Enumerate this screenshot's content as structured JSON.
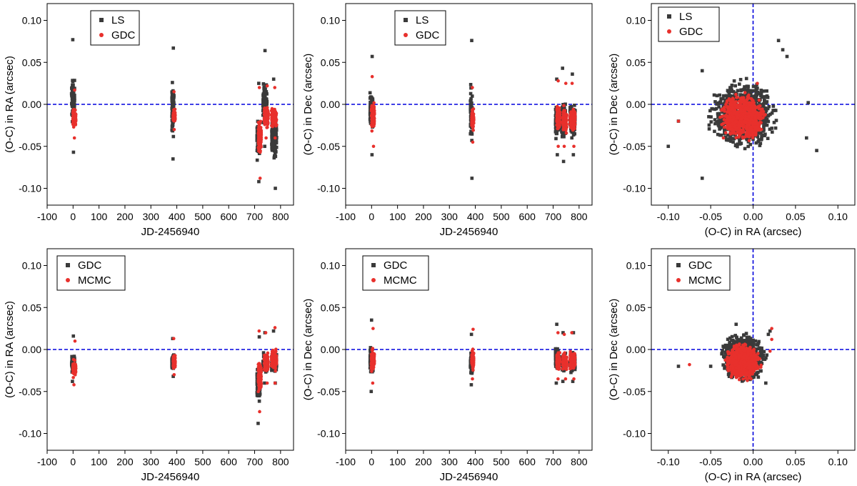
{
  "colors": {
    "series_a": "#3a3a3a",
    "series_b": "#e8302c",
    "reference_line": "#0000dd",
    "axis": "#000000"
  },
  "chart_data": [
    {
      "type": "scatter",
      "panel": "top-left",
      "xlabel": "JD-2456940",
      "ylabel": "(O-C) in RA (arcsec)",
      "xlim": [
        -100,
        850
      ],
      "ylim": [
        -0.12,
        0.12
      ],
      "xticks": [
        "-100",
        "0",
        "100",
        "200",
        "300",
        "400",
        "500",
        "600",
        "700",
        "800"
      ],
      "yticks": [
        "0.10",
        "0.05",
        "0.00",
        "-0.05",
        "-0.10"
      ],
      "grid": false,
      "legend_position": "top-left",
      "reference_lines": {
        "horizontal": 0.0
      },
      "series": [
        {
          "name": "LS",
          "marker": "square",
          "color": "#3a3a3a",
          "clusters": [
            {
              "x": 0,
              "x_spread": 6,
              "y_min": -0.057,
              "y_max": 0.077
            },
            {
              "x": 385,
              "x_spread": 4,
              "y_min": -0.065,
              "y_max": 0.067
            },
            {
              "x": 715,
              "x_spread": 6,
              "y_min": -0.092,
              "y_max": 0.025
            },
            {
              "x": 740,
              "x_spread": 8,
              "y_min": -0.05,
              "y_max": 0.064
            },
            {
              "x": 775,
              "x_spread": 10,
              "y_min": -0.1,
              "y_max": 0.03
            }
          ]
        },
        {
          "name": "GDC",
          "marker": "circle",
          "color": "#e8302c",
          "clusters": [
            {
              "x": 5,
              "x_spread": 6,
              "y_min": -0.04,
              "y_max": 0.017
            },
            {
              "x": 390,
              "x_spread": 4,
              "y_min": -0.03,
              "y_max": 0.015
            },
            {
              "x": 720,
              "x_spread": 6,
              "y_min": -0.088,
              "y_max": 0.02
            },
            {
              "x": 745,
              "x_spread": 8,
              "y_min": -0.04,
              "y_max": 0.022
            },
            {
              "x": 775,
              "x_spread": 10,
              "y_min": -0.04,
              "y_max": 0.02
            }
          ]
        }
      ]
    },
    {
      "type": "scatter",
      "panel": "top-middle",
      "xlabel": "JD-2456940",
      "ylabel": "(O-C) in Dec (arcsec)",
      "xlim": [
        -100,
        850
      ],
      "ylim": [
        -0.12,
        0.12
      ],
      "xticks": [
        "-100",
        "0",
        "100",
        "200",
        "300",
        "400",
        "500",
        "600",
        "700",
        "800"
      ],
      "yticks": [
        "0.10",
        "0.05",
        "0.00",
        "-0.05",
        "-0.10"
      ],
      "grid": false,
      "legend_position": "top-middle",
      "reference_lines": {
        "horizontal": 0.0
      },
      "series": [
        {
          "name": "LS",
          "marker": "square",
          "color": "#3a3a3a",
          "clusters": [
            {
              "x": 0,
              "x_spread": 6,
              "y_min": -0.06,
              "y_max": 0.057
            },
            {
              "x": 385,
              "x_spread": 4,
              "y_min": -0.088,
              "y_max": 0.076
            },
            {
              "x": 715,
              "x_spread": 6,
              "y_min": -0.06,
              "y_max": 0.03
            },
            {
              "x": 740,
              "x_spread": 8,
              "y_min": -0.068,
              "y_max": 0.043
            },
            {
              "x": 775,
              "x_spread": 10,
              "y_min": -0.06,
              "y_max": 0.036
            }
          ]
        },
        {
          "name": "GDC",
          "marker": "circle",
          "color": "#e8302c",
          "clusters": [
            {
              "x": 5,
              "x_spread": 6,
              "y_min": -0.05,
              "y_max": 0.033
            },
            {
              "x": 390,
              "x_spread": 4,
              "y_min": -0.045,
              "y_max": 0.02
            },
            {
              "x": 720,
              "x_spread": 6,
              "y_min": -0.05,
              "y_max": 0.028
            },
            {
              "x": 745,
              "x_spread": 8,
              "y_min": -0.05,
              "y_max": 0.025
            },
            {
              "x": 775,
              "x_spread": 10,
              "y_min": -0.05,
              "y_max": 0.025
            }
          ]
        }
      ]
    },
    {
      "type": "scatter",
      "panel": "top-right",
      "xlabel": "(O-C) in RA (arcsec)",
      "ylabel": "(O-C) in Dec (arcsec)",
      "xlim": [
        -0.12,
        0.12
      ],
      "ylim": [
        -0.12,
        0.12
      ],
      "xticks": [
        "-0.10",
        "-0.05",
        "0.00",
        "0.05",
        "0.10"
      ],
      "yticks": [
        "0.10",
        "0.05",
        "0.00",
        "-0.05",
        "-0.10"
      ],
      "grid": false,
      "legend_position": "top-left",
      "reference_lines": {
        "horizontal": 0.0,
        "vertical": 0.0
      },
      "series": [
        {
          "name": "LS",
          "marker": "square",
          "color": "#3a3a3a",
          "blob": {
            "center": [
              -0.012,
              -0.012
            ],
            "radius": [
              0.045,
              0.045
            ]
          },
          "outliers": [
            [
              -0.1,
              -0.05
            ],
            [
              -0.088,
              -0.02
            ],
            [
              -0.06,
              -0.088
            ],
            [
              0.035,
              0.065
            ],
            [
              0.03,
              0.076
            ],
            [
              0.04,
              0.057
            ],
            [
              0.065,
              0.002
            ],
            [
              0.075,
              -0.055
            ],
            [
              0.063,
              -0.04
            ],
            [
              -0.06,
              0.04
            ]
          ]
        },
        {
          "name": "GDC",
          "marker": "circle",
          "color": "#e8302c",
          "blob": {
            "center": [
              -0.012,
              -0.015
            ],
            "radius": [
              0.028,
              0.03
            ]
          },
          "outliers": [
            [
              -0.088,
              -0.02
            ],
            [
              0.005,
              0.025
            ],
            [
              -0.035,
              -0.04
            ]
          ]
        }
      ]
    },
    {
      "type": "scatter",
      "panel": "bottom-left",
      "xlabel": "JD-2456940",
      "ylabel": "(O-C) in RA (arcsec)",
      "xlim": [
        -100,
        850
      ],
      "ylim": [
        -0.12,
        0.12
      ],
      "xticks": [
        "-100",
        "0",
        "100",
        "200",
        "300",
        "400",
        "500",
        "600",
        "700",
        "800"
      ],
      "yticks": [
        "0.10",
        "0.05",
        "0.00",
        "-0.05",
        "-0.10"
      ],
      "grid": false,
      "legend_position": "top-left",
      "reference_lines": {
        "horizontal": 0.0
      },
      "series": [
        {
          "name": "GDC",
          "marker": "square",
          "color": "#3a3a3a",
          "clusters": [
            {
              "x": 0,
              "x_spread": 6,
              "y_min": -0.038,
              "y_max": 0.016
            },
            {
              "x": 385,
              "x_spread": 4,
              "y_min": -0.032,
              "y_max": 0.013
            },
            {
              "x": 715,
              "x_spread": 6,
              "y_min": -0.088,
              "y_max": 0.015
            },
            {
              "x": 740,
              "x_spread": 8,
              "y_min": -0.04,
              "y_max": 0.02
            },
            {
              "x": 775,
              "x_spread": 10,
              "y_min": -0.04,
              "y_max": 0.022
            }
          ]
        },
        {
          "name": "MCMC",
          "marker": "circle",
          "color": "#e8302c",
          "clusters": [
            {
              "x": 5,
              "x_spread": 6,
              "y_min": -0.042,
              "y_max": 0.01
            },
            {
              "x": 390,
              "x_spread": 4,
              "y_min": -0.03,
              "y_max": 0.013
            },
            {
              "x": 720,
              "x_spread": 6,
              "y_min": -0.074,
              "y_max": 0.022
            },
            {
              "x": 745,
              "x_spread": 8,
              "y_min": -0.04,
              "y_max": 0.02
            },
            {
              "x": 775,
              "x_spread": 10,
              "y_min": -0.04,
              "y_max": 0.026
            }
          ]
        }
      ]
    },
    {
      "type": "scatter",
      "panel": "bottom-middle",
      "xlabel": "JD-2456940",
      "ylabel": "(O-C) in Dec (arcsec)",
      "xlim": [
        -100,
        850
      ],
      "ylim": [
        -0.12,
        0.12
      ],
      "xticks": [
        "-100",
        "0",
        "100",
        "200",
        "300",
        "400",
        "500",
        "600",
        "700",
        "800"
      ],
      "yticks": [
        "0.10",
        "0.05",
        "0.00",
        "-0.05",
        "-0.10"
      ],
      "grid": false,
      "legend_position": "top-left",
      "reference_lines": {
        "horizontal": 0.0
      },
      "series": [
        {
          "name": "GDC",
          "marker": "square",
          "color": "#3a3a3a",
          "clusters": [
            {
              "x": 0,
              "x_spread": 6,
              "y_min": -0.05,
              "y_max": 0.035
            },
            {
              "x": 385,
              "x_spread": 4,
              "y_min": -0.042,
              "y_max": 0.018
            },
            {
              "x": 715,
              "x_spread": 6,
              "y_min": -0.04,
              "y_max": 0.03
            },
            {
              "x": 740,
              "x_spread": 8,
              "y_min": -0.038,
              "y_max": 0.02
            },
            {
              "x": 775,
              "x_spread": 10,
              "y_min": -0.038,
              "y_max": 0.02
            }
          ]
        },
        {
          "name": "MCMC",
          "marker": "circle",
          "color": "#e8302c",
          "clusters": [
            {
              "x": 5,
              "x_spread": 6,
              "y_min": -0.04,
              "y_max": 0.025
            },
            {
              "x": 390,
              "x_spread": 4,
              "y_min": -0.035,
              "y_max": 0.024
            },
            {
              "x": 720,
              "x_spread": 6,
              "y_min": -0.035,
              "y_max": 0.02
            },
            {
              "x": 745,
              "x_spread": 8,
              "y_min": -0.035,
              "y_max": 0.018
            },
            {
              "x": 775,
              "x_spread": 10,
              "y_min": -0.035,
              "y_max": 0.02
            }
          ]
        }
      ]
    },
    {
      "type": "scatter",
      "panel": "bottom-right",
      "xlabel": "(O-C) in RA (arcsec)",
      "ylabel": "(O-C) in Dec (arcsec)",
      "xlim": [
        -0.12,
        0.12
      ],
      "ylim": [
        -0.12,
        0.12
      ],
      "xticks": [
        "-0.10",
        "-0.05",
        "0.00",
        "0.05",
        "0.10"
      ],
      "yticks": [
        "0.10",
        "0.05",
        "0.00",
        "-0.05",
        "-0.10"
      ],
      "grid": false,
      "legend_position": "top-left",
      "reference_lines": {
        "horizontal": 0.0,
        "vertical": 0.0
      },
      "series": [
        {
          "name": "GDC",
          "marker": "square",
          "color": "#3a3a3a",
          "blob": {
            "center": [
              -0.012,
              -0.01
            ],
            "radius": [
              0.03,
              0.03
            ]
          },
          "outliers": [
            [
              -0.088,
              -0.02
            ],
            [
              -0.05,
              -0.02
            ],
            [
              0.018,
              0.018
            ],
            [
              0.02,
              0.022
            ],
            [
              -0.02,
              0.03
            ],
            [
              0.015,
              -0.04
            ]
          ]
        },
        {
          "name": "MCMC",
          "marker": "circle",
          "color": "#e8302c",
          "blob": {
            "center": [
              -0.012,
              -0.015
            ],
            "radius": [
              0.022,
              0.024
            ]
          },
          "outliers": [
            [
              -0.075,
              -0.018
            ],
            [
              0.022,
              0.012
            ],
            [
              0.02,
              -0.002
            ],
            [
              0.022,
              0.025
            ]
          ]
        }
      ]
    }
  ]
}
